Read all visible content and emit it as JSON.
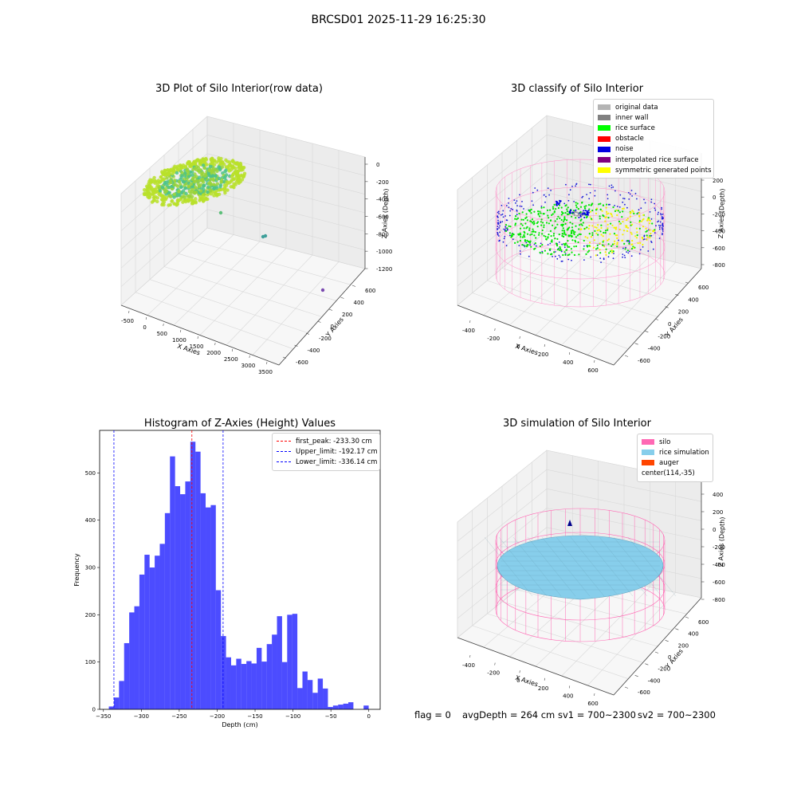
{
  "title": "BRCSD01 2025-11-29 16:25:30",
  "panels": {
    "raw": {
      "title": "3D Plot of Silo Interior(row data)",
      "xlabel": "X Axies",
      "ylabel": "Y Axies",
      "zlabel": "Z Axies (Depth)",
      "xticks": [
        "-500",
        "0",
        "500",
        "1000",
        "1500",
        "2000",
        "2500",
        "3000",
        "3500"
      ],
      "yticks": [
        "600",
        "400",
        "200",
        "0",
        "-200",
        "-400",
        "-600"
      ],
      "zticks": [
        "0",
        "-200",
        "-400",
        "-600",
        "-800",
        "-1000",
        "-1200"
      ]
    },
    "classify": {
      "title": "3D classify of Silo Interior",
      "xlabel": "X Axies",
      "ylabel": "Y Axies",
      "zlabel": "Z Axies (Depth)",
      "xticks": [
        "-400",
        "-200",
        "0",
        "200",
        "400",
        "600"
      ],
      "yticks": [
        "600",
        "400",
        "200",
        "0",
        "-200",
        "-400",
        "-600"
      ],
      "zticks": [
        "200",
        "0",
        "-200",
        "-400",
        "-600",
        "-800"
      ],
      "zticks_top": "00",
      "legend": [
        {
          "label": "original data",
          "color": "#b4b4b4"
        },
        {
          "label": "inner wall",
          "color": "#808080"
        },
        {
          "label": "rice surface",
          "color": "#00ff00"
        },
        {
          "label": "obstacle",
          "color": "#ff0000"
        },
        {
          "label": "noise",
          "color": "#0000e0"
        },
        {
          "label": "interpolated rice surface",
          "color": "#800080"
        },
        {
          "label": "symmetric generated points",
          "color": "#ffff00"
        }
      ]
    },
    "simulation": {
      "title": "3D simulation of Silo Interior",
      "xlabel": "X Axies",
      "ylabel": "Y Axies",
      "zlabel": "Z Axies (Depth)",
      "xticks": [
        "-400",
        "-200",
        "0",
        "200",
        "400",
        "600"
      ],
      "yticks": [
        "600",
        "400",
        "200",
        "0",
        "-200",
        "-400",
        "-600"
      ],
      "zticks": [
        "400",
        "200",
        "0",
        "-200",
        "-400",
        "-600",
        "-800"
      ],
      "legend": [
        {
          "label": "silo",
          "color": "#ff69b4"
        },
        {
          "label": "rice simulation",
          "color": "#87ceeb"
        },
        {
          "label": "auger",
          "color": "#ff4500"
        },
        {
          "label": "center(114,-35)",
          "color": ""
        }
      ]
    }
  },
  "status": {
    "flag": "flag = 0",
    "avg_depth": "avgDepth = 264 cm",
    "sv1": "sv1 = 700~2300",
    "sv2": "sv2 = 700~2300"
  },
  "chart_data": {
    "type": "bar",
    "title": "Histogram of Z-Axies (Height) Values",
    "xlabel": "Depth (cm)",
    "ylabel": "Frequency",
    "xlim": [
      -355,
      15
    ],
    "ylim": [
      0,
      590
    ],
    "xticks": [
      -350,
      -300,
      -250,
      -200,
      -150,
      -100,
      -50,
      0
    ],
    "yticks": [
      0,
      100,
      200,
      300,
      400,
      500
    ],
    "bar_color": "#0000ff",
    "bin_width": 6.72,
    "bins_left": [
      -342.86,
      -336.14,
      -329.42,
      -322.7,
      -315.98,
      -309.26,
      -302.54,
      -295.82,
      -289.1,
      -282.38,
      -275.66,
      -268.94,
      -262.22,
      -255.5,
      -248.78,
      -242.06,
      -235.34,
      -228.62,
      -221.9,
      -215.18,
      -208.46,
      -201.74,
      -195.02,
      -188.3,
      -181.58,
      -174.86,
      -168.14,
      -161.42,
      -154.7,
      -147.98,
      -141.26,
      -134.54,
      -127.82,
      -121.1,
      -114.38,
      -107.66,
      -100.94,
      -94.22,
      -87.5,
      -80.78,
      -74.06,
      -67.34,
      -60.62,
      -53.9,
      -47.18,
      -40.46,
      -33.74,
      -27.02,
      -20.3,
      -13.58,
      -6.86
    ],
    "values": [
      6,
      25,
      60,
      140,
      205,
      218,
      285,
      327,
      300,
      325,
      350,
      415,
      535,
      472,
      455,
      482,
      566,
      545,
      457,
      427,
      432,
      252,
      155,
      110,
      93,
      107,
      96,
      102,
      97,
      130,
      101,
      138,
      158,
      197,
      100,
      200,
      202,
      45,
      80,
      62,
      35,
      65,
      44,
      5,
      8,
      10,
      12,
      15,
      0,
      0,
      8
    ],
    "lines": [
      {
        "label": "first_peak: -233.30 cm",
        "x": -233.3,
        "color": "#ff0000"
      },
      {
        "label": "Upper_limit: -192.17 cm",
        "x": -192.17,
        "color": "#0000ff"
      },
      {
        "label": "Lower_limit: -336.14 cm",
        "x": -336.14,
        "color": "#0000ff"
      }
    ],
    "legend_position": "top-right"
  }
}
